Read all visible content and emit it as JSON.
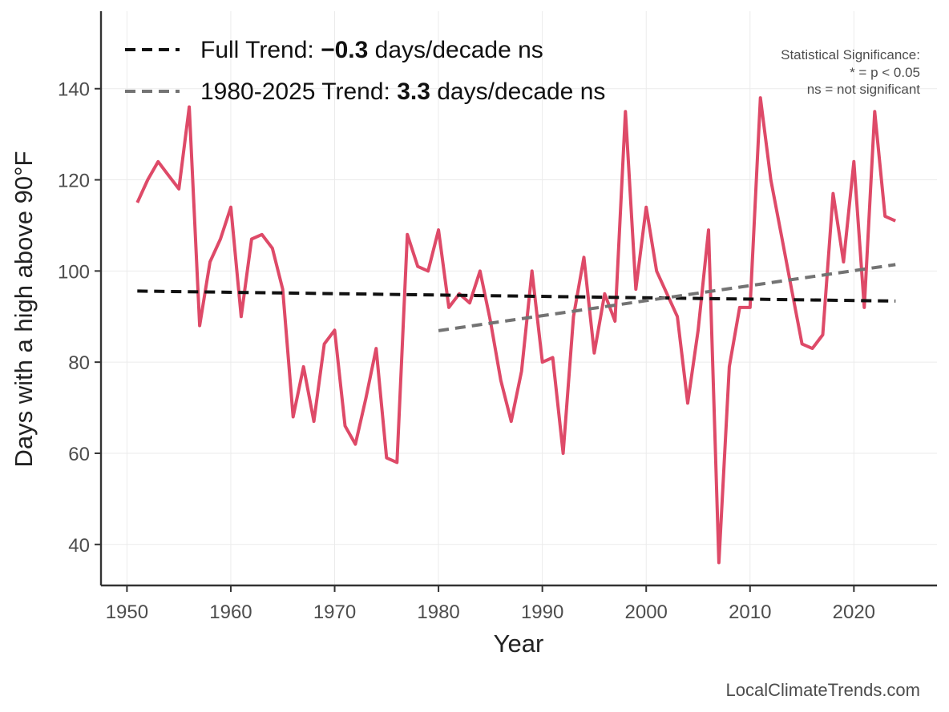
{
  "chart_data": {
    "type": "line",
    "title": "",
    "xlabel": "Year",
    "ylabel": "Days with a high above 90°F",
    "xlim": [
      1947.5,
      2028
    ],
    "ylim": [
      31,
      157
    ],
    "x_ticks": [
      1950,
      1960,
      1970,
      1980,
      1990,
      2000,
      2010,
      2020
    ],
    "y_ticks": [
      40,
      60,
      80,
      100,
      120,
      140
    ],
    "grid": true,
    "series": [
      {
        "name": "Days with a high above 90°F",
        "color": "#de4a68",
        "x": [
          1951,
          1952,
          1953,
          1954,
          1955,
          1956,
          1957,
          1958,
          1959,
          1960,
          1961,
          1962,
          1963,
          1964,
          1965,
          1966,
          1967,
          1968,
          1969,
          1970,
          1971,
          1972,
          1973,
          1974,
          1975,
          1976,
          1977,
          1978,
          1979,
          1980,
          1981,
          1982,
          1983,
          1984,
          1985,
          1986,
          1987,
          1988,
          1989,
          1990,
          1991,
          1992,
          1993,
          1994,
          1995,
          1996,
          1997,
          1998,
          1999,
          2000,
          2001,
          2002,
          2003,
          2004,
          2005,
          2006,
          2007,
          2008,
          2009,
          2010,
          2011,
          2012,
          2013,
          2014,
          2015,
          2016,
          2017,
          2018,
          2019,
          2020,
          2021,
          2022,
          2023,
          2024
        ],
        "values": [
          115,
          120,
          124,
          121,
          118,
          136,
          88,
          102,
          107,
          114,
          90,
          107,
          108,
          105,
          96,
          68,
          79,
          67,
          84,
          87,
          66,
          62,
          72,
          83,
          59,
          58,
          108,
          101,
          100,
          109,
          92,
          95,
          93,
          100,
          89,
          76,
          67,
          78,
          100,
          80,
          81,
          60,
          90,
          103,
          82,
          95,
          89,
          135,
          96,
          114,
          100,
          95,
          90,
          71,
          87,
          109,
          36,
          79,
          92,
          92,
          138,
          120,
          108,
          96,
          84,
          83,
          86,
          117,
          102,
          124,
          92,
          135,
          112,
          111
        ]
      },
      {
        "name": "Full Trend",
        "color": "#111111",
        "style": "dashed",
        "x": [
          1951,
          2024
        ],
        "values": [
          95.6,
          93.4
        ]
      },
      {
        "name": "1980-2025 Trend",
        "color": "#737373",
        "style": "dashed",
        "x": [
          1980,
          2024
        ],
        "values": [
          86.9,
          101.4
        ]
      }
    ],
    "legend": {
      "position": "top-left",
      "items": [
        {
          "prefix": "Full Trend: ",
          "value": "−0.3",
          "suffix": " days/decade ns",
          "color": "#111111"
        },
        {
          "prefix": "1980-2025 Trend: ",
          "value": "3.3",
          "suffix": " days/decade ns",
          "color": "#737373"
        }
      ]
    },
    "annotations": [
      "Statistical Significance:",
      "* = p < 0.05",
      "ns = not significant"
    ]
  },
  "source": "LocalClimateTrends.com"
}
